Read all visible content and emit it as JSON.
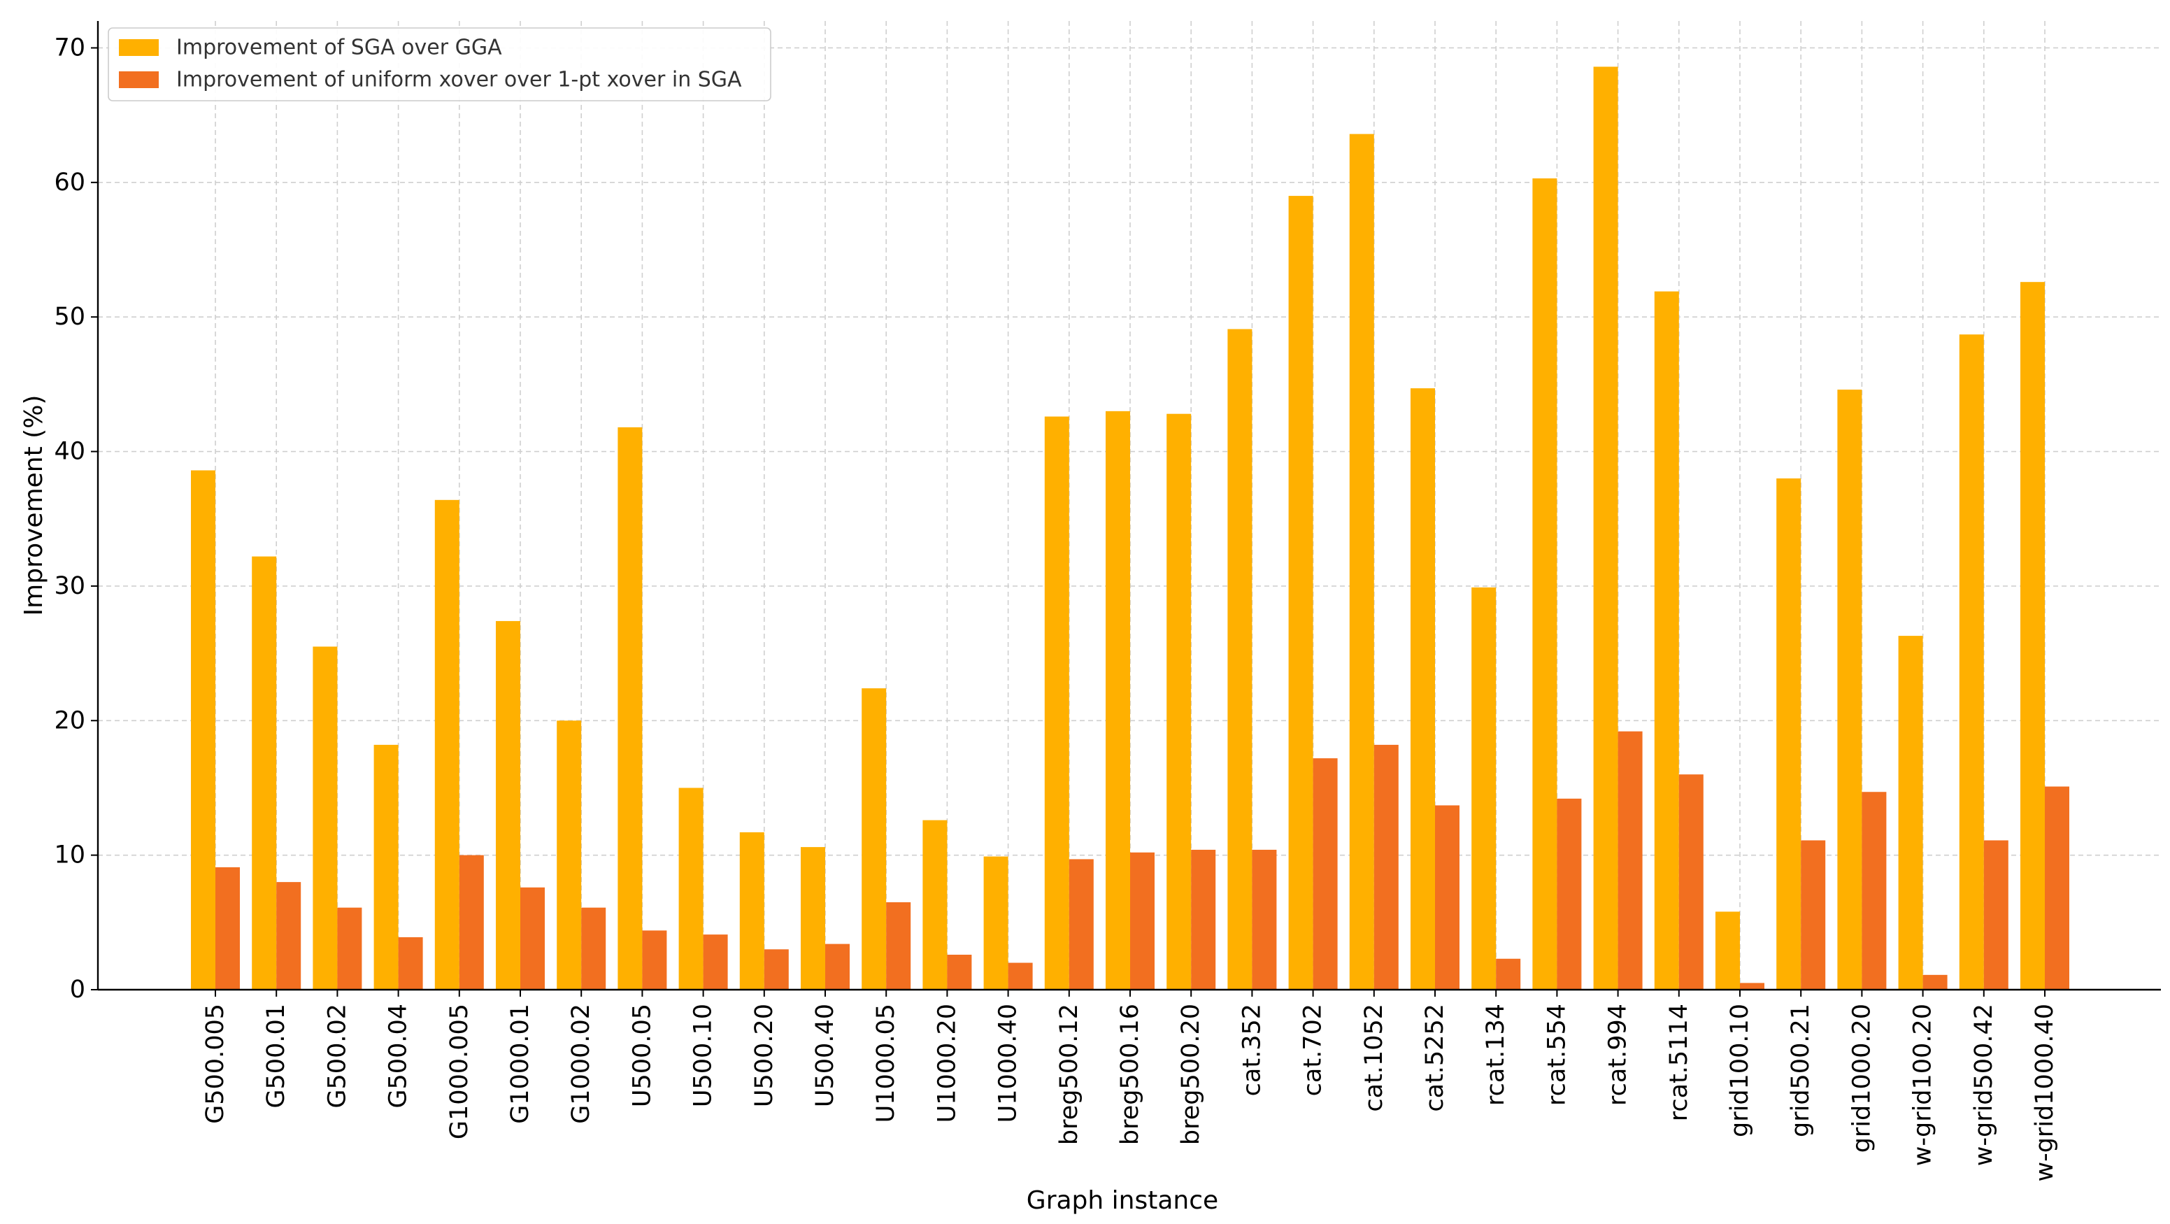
{
  "chart_data": {
    "type": "bar",
    "title": "",
    "xlabel": "Graph instance",
    "ylabel": "Improvement (%)",
    "ylim": [
      0,
      72
    ],
    "yticks": [
      0,
      10,
      20,
      30,
      40,
      50,
      60,
      70
    ],
    "grid": true,
    "legend_position": "top-left",
    "categories": [
      "G500.005",
      "G500.01",
      "G500.02",
      "G500.04",
      "G1000.005",
      "G1000.01",
      "G1000.02",
      "U500.05",
      "U500.10",
      "U500.20",
      "U500.40",
      "U1000.05",
      "U1000.20",
      "U1000.40",
      "breg500.12",
      "breg500.16",
      "breg500.20",
      "cat.352",
      "cat.702",
      "cat.1052",
      "cat.5252",
      "rcat.134",
      "rcat.554",
      "rcat.994",
      "rcat.5114",
      "grid100.10",
      "grid500.21",
      "grid1000.20",
      "w-grid100.20",
      "w-grid500.42",
      "w-grid1000.40"
    ],
    "series": [
      {
        "name": "Improvement of SGA over GGA",
        "color": "#FFB000",
        "values": [
          38.6,
          32.2,
          25.5,
          18.2,
          36.4,
          27.4,
          20.0,
          41.8,
          15.0,
          11.7,
          10.6,
          22.4,
          12.6,
          9.9,
          42.6,
          43.0,
          42.8,
          49.1,
          59.0,
          63.6,
          44.7,
          29.9,
          60.3,
          68.6,
          51.9,
          5.8,
          38.0,
          44.6,
          26.3,
          48.7,
          52.6
        ]
      },
      {
        "name": "Improvement of uniform xover over 1-pt xover in SGA",
        "color": "#F26F20",
        "values": [
          9.1,
          8.0,
          6.1,
          3.9,
          10.0,
          7.6,
          6.1,
          4.4,
          4.1,
          3.0,
          3.4,
          6.5,
          2.6,
          2.0,
          9.7,
          10.2,
          10.4,
          10.4,
          17.2,
          18.2,
          13.7,
          2.3,
          14.2,
          19.2,
          16.0,
          0.5,
          11.1,
          14.7,
          1.1,
          11.1,
          15.1
        ]
      }
    ]
  }
}
